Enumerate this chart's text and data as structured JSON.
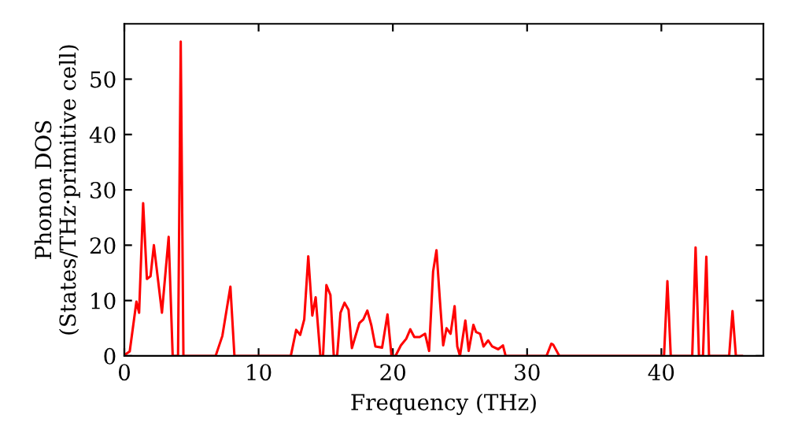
{
  "chart_data": {
    "type": "line",
    "xlabel": "Frequency (THz)",
    "ylabel": "Phonon DOS\n(States/THz·primitive cell)",
    "xlim": [
      0,
      47.6
    ],
    "ylim": [
      0,
      60
    ],
    "xticks": [
      0,
      10,
      20,
      30,
      40
    ],
    "yticks": [
      0,
      10,
      20,
      30,
      40,
      50
    ],
    "grid": false,
    "legend": false,
    "marker": "none",
    "line_style": "solid",
    "series": [
      {
        "color": "#ff0000",
        "x": [
          0,
          0.1,
          0.4,
          0.9,
          1.1,
          1.4,
          1.68,
          1.95,
          2.2,
          2.8,
          3.3,
          3.6,
          4.0,
          4.2,
          4.4,
          6.8,
          7.3,
          7.9,
          8.2,
          12.4,
          12.8,
          13.1,
          13.4,
          13.7,
          14.0,
          14.25,
          14.6,
          14.8,
          15.05,
          15.35,
          15.6,
          15.85,
          16.1,
          16.4,
          16.7,
          16.95,
          17.5,
          17.8,
          18.1,
          18.4,
          18.7,
          19.2,
          19.6,
          19.9,
          20.2,
          20.6,
          21.0,
          21.3,
          21.6,
          22.0,
          22.4,
          22.7,
          23.0,
          23.25,
          23.5,
          23.75,
          24.0,
          24.3,
          24.6,
          24.8,
          25.0,
          25.4,
          25.65,
          26.0,
          26.2,
          26.5,
          26.75,
          27.1,
          27.4,
          27.85,
          28.2,
          28.4,
          31.45,
          31.8,
          31.95,
          32.4,
          40.2,
          40.45,
          40.7,
          42.3,
          42.55,
          42.8,
          43.1,
          43.35,
          43.55,
          45.05,
          45.3,
          45.55,
          46.0
        ],
        "values": [
          0,
          0.3,
          0.8,
          9.8,
          7.8,
          27.6,
          13.9,
          14.4,
          20,
          7.8,
          21.5,
          0,
          0,
          56.8,
          0,
          0,
          3.6,
          12.5,
          0,
          0,
          4.7,
          3.8,
          6.6,
          18,
          7.3,
          10.6,
          0,
          0,
          12.8,
          11,
          0,
          0,
          7.8,
          9.6,
          8.3,
          1.4,
          5.9,
          6.6,
          8.2,
          5.5,
          1.7,
          1.5,
          7.5,
          0,
          0,
          1.9,
          3.1,
          4.8,
          3.4,
          3.4,
          4,
          0.9,
          15.3,
          19.1,
          10.2,
          1.9,
          5,
          4,
          9,
          1.7,
          0,
          6.4,
          0.9,
          5.6,
          4.3,
          4,
          1.7,
          2.8,
          1.7,
          1.2,
          1.9,
          0,
          0,
          2.2,
          2,
          0,
          0,
          13.5,
          0,
          0,
          19.6,
          0,
          0,
          17.9,
          0,
          0,
          8.1,
          0,
          0
        ]
      }
    ]
  }
}
